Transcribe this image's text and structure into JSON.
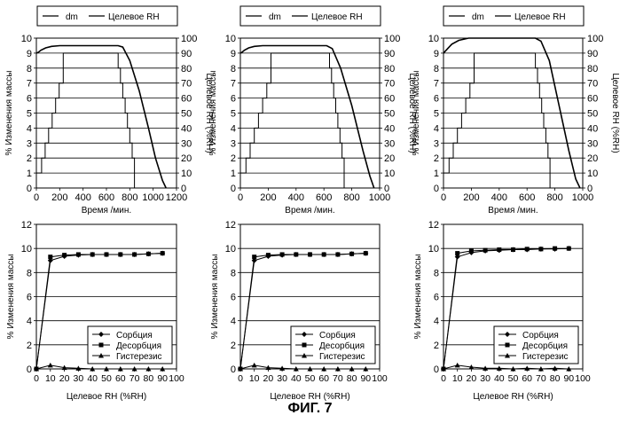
{
  "figure_caption": "ФИГ. 7",
  "chart_data": [
    {
      "type": "line",
      "panel": "top-left",
      "legend": [
        "dm",
        "Целевое RH"
      ],
      "legend_position": "top",
      "xlabel": "Время /мин.",
      "ylabel": "% Изменения массы",
      "y2label": "Целевое RH (%RH)",
      "xlim": [
        0,
        1200
      ],
      "xticks": [
        "0",
        "200",
        "400",
        "600",
        "800",
        "1000",
        "1200"
      ],
      "ylim": [
        0,
        10
      ],
      "yticks": [
        "0",
        "1",
        "2",
        "3",
        "4",
        "5",
        "6",
        "7",
        "8",
        "9",
        "10"
      ],
      "y2lim": [
        0,
        100
      ],
      "y2ticks": [
        "0",
        "10",
        "20",
        "30",
        "40",
        "50",
        "60",
        "70",
        "80",
        "90",
        "100"
      ],
      "grid": true,
      "series": [
        {
          "name": "dm",
          "axis": "left",
          "x": [
            0,
            15,
            40,
            80,
            130,
            200,
            300,
            500,
            700,
            740,
            800,
            880,
            960,
            1020,
            1080,
            1110
          ],
          "y": [
            9.0,
            9.05,
            9.2,
            9.35,
            9.45,
            9.5,
            9.5,
            9.5,
            9.5,
            9.4,
            8.5,
            6.5,
            4.0,
            2.0,
            0.5,
            0.0
          ]
        },
        {
          "name": "Целевое RH",
          "axis": "right",
          "x": [
            0,
            0,
            45,
            45,
            75,
            75,
            105,
            105,
            135,
            135,
            165,
            165,
            195,
            195,
            230,
            230,
            700,
            700,
            720,
            720,
            740,
            740,
            760,
            760,
            780,
            780,
            800,
            800,
            820,
            820,
            840,
            840,
            1110
          ],
          "y": [
            0,
            10,
            10,
            20,
            20,
            30,
            30,
            40,
            40,
            50,
            50,
            60,
            60,
            70,
            70,
            90,
            90,
            80,
            80,
            70,
            70,
            60,
            60,
            50,
            50,
            40,
            40,
            30,
            30,
            20,
            20,
            0,
            0
          ]
        }
      ]
    },
    {
      "type": "line",
      "panel": "top-middle",
      "legend": [
        "dm",
        "Целевое RH"
      ],
      "legend_position": "top",
      "xlabel": "Время /мин.",
      "ylabel": "% Изменения массы",
      "y2label": "Целевое RH (%RH)",
      "xlim": [
        0,
        1000
      ],
      "xticks": [
        "0",
        "200",
        "400",
        "600",
        "800",
        "1000"
      ],
      "ylim": [
        0,
        10
      ],
      "yticks": [
        "0",
        "1",
        "2",
        "3",
        "4",
        "5",
        "6",
        "7",
        "8",
        "9",
        "10"
      ],
      "y2lim": [
        0,
        100
      ],
      "y2ticks": [
        "0",
        "10",
        "20",
        "30",
        "40",
        "50",
        "60",
        "70",
        "80",
        "90",
        "100"
      ],
      "grid": true,
      "series": [
        {
          "name": "dm",
          "axis": "left",
          "x": [
            0,
            10,
            30,
            60,
            100,
            160,
            250,
            450,
            620,
            660,
            720,
            800,
            880,
            930,
            960
          ],
          "y": [
            9.0,
            9.05,
            9.2,
            9.35,
            9.45,
            9.5,
            9.5,
            9.5,
            9.5,
            9.3,
            8.0,
            5.5,
            2.5,
            0.8,
            0.0
          ]
        },
        {
          "name": "Целевое RH",
          "axis": "right",
          "x": [
            0,
            0,
            40,
            40,
            70,
            70,
            100,
            100,
            130,
            130,
            160,
            160,
            190,
            190,
            220,
            220,
            640,
            640,
            655,
            655,
            670,
            670,
            685,
            685,
            700,
            700,
            715,
            715,
            730,
            730,
            745,
            745,
            960
          ],
          "y": [
            0,
            10,
            10,
            20,
            20,
            30,
            30,
            40,
            40,
            50,
            50,
            60,
            60,
            70,
            70,
            90,
            90,
            80,
            80,
            70,
            70,
            60,
            60,
            50,
            50,
            40,
            40,
            30,
            30,
            20,
            20,
            0,
            0
          ]
        }
      ]
    },
    {
      "type": "line",
      "panel": "top-right",
      "legend": [
        "dm",
        "Целевое RH"
      ],
      "legend_position": "top",
      "xlabel": "Время /мин.",
      "ylabel": "% Изменения массы",
      "y2label": "Целевое RH (%RH)",
      "xlim": [
        0,
        1000
      ],
      "xticks": [
        "0",
        "200",
        "400",
        "600",
        "800",
        "1000"
      ],
      "ylim": [
        0,
        10
      ],
      "yticks": [
        "0",
        "1",
        "2",
        "3",
        "4",
        "5",
        "6",
        "7",
        "8",
        "9",
        "10"
      ],
      "y2lim": [
        0,
        100
      ],
      "y2ticks": [
        "0",
        "10",
        "20",
        "30",
        "40",
        "50",
        "60",
        "70",
        "80",
        "90",
        "100"
      ],
      "grid": true,
      "series": [
        {
          "name": "dm",
          "axis": "left",
          "x": [
            0,
            10,
            30,
            60,
            110,
            180,
            300,
            500,
            660,
            700,
            760,
            830,
            900,
            950,
            980
          ],
          "y": [
            9.0,
            9.1,
            9.3,
            9.6,
            9.85,
            10.0,
            10.0,
            10.0,
            10.0,
            9.8,
            8.5,
            5.5,
            2.5,
            0.6,
            0.0
          ]
        },
        {
          "name": "Целевое RH",
          "axis": "right",
          "x": [
            0,
            0,
            40,
            40,
            70,
            70,
            100,
            100,
            130,
            130,
            160,
            160,
            190,
            190,
            220,
            220,
            660,
            660,
            675,
            675,
            690,
            690,
            705,
            705,
            720,
            720,
            735,
            735,
            750,
            750,
            765,
            765,
            980
          ],
          "y": [
            0,
            10,
            10,
            20,
            20,
            30,
            30,
            40,
            40,
            50,
            50,
            60,
            60,
            70,
            70,
            90,
            90,
            80,
            80,
            70,
            70,
            60,
            60,
            50,
            50,
            40,
            40,
            30,
            30,
            20,
            20,
            0,
            0
          ]
        }
      ]
    },
    {
      "type": "line",
      "panel": "bottom-left",
      "legend": [
        "Сорбция",
        "Десорбция",
        "Гистерезис"
      ],
      "legend_position": "bottom-right",
      "xlabel": "Целевое RH (%RH)",
      "ylabel": "% Изменения массы",
      "xlim": [
        0,
        100
      ],
      "xticks": [
        "0",
        "10",
        "20",
        "30",
        "40",
        "50",
        "60",
        "70",
        "80",
        "90",
        "100"
      ],
      "ylim": [
        0,
        12
      ],
      "yticks": [
        "0",
        "2",
        "4",
        "6",
        "8",
        "10",
        "12"
      ],
      "grid": true,
      "series": [
        {
          "name": "Сорбция",
          "marker": "diamond",
          "x": [
            0,
            10,
            20,
            30,
            40,
            50,
            60,
            70,
            80,
            90
          ],
          "y": [
            0,
            9.0,
            9.35,
            9.45,
            9.5,
            9.5,
            9.5,
            9.5,
            9.55,
            9.6
          ]
        },
        {
          "name": "Десорбция",
          "marker": "square",
          "x": [
            0,
            10,
            20,
            30,
            40,
            50,
            60,
            70,
            80,
            90
          ],
          "y": [
            0,
            9.3,
            9.45,
            9.5,
            9.5,
            9.5,
            9.5,
            9.5,
            9.55,
            9.6
          ]
        },
        {
          "name": "Гистерезис",
          "marker": "triangle",
          "x": [
            0,
            10,
            20,
            30,
            40,
            50,
            60,
            70,
            80,
            90
          ],
          "y": [
            0,
            0.3,
            0.1,
            0.05,
            0.0,
            0.0,
            0.0,
            0.0,
            0.0,
            0.0
          ]
        }
      ]
    },
    {
      "type": "line",
      "panel": "bottom-middle",
      "legend": [
        "Сорбция",
        "Десорбция",
        "Гистерезис"
      ],
      "legend_position": "bottom-right",
      "xlabel": "Целевое RH (%RH)",
      "ylabel": "% Изменения массы",
      "xlim": [
        0,
        100
      ],
      "xticks": [
        "0",
        "10",
        "20",
        "30",
        "40",
        "50",
        "60",
        "70",
        "80",
        "90",
        "100"
      ],
      "ylim": [
        0,
        12
      ],
      "yticks": [
        "0",
        "2",
        "4",
        "6",
        "8",
        "10",
        "12"
      ],
      "grid": true,
      "series": [
        {
          "name": "Сорбция",
          "marker": "diamond",
          "x": [
            0,
            10,
            20,
            30,
            40,
            50,
            60,
            70,
            80,
            90
          ],
          "y": [
            0,
            9.0,
            9.35,
            9.45,
            9.5,
            9.5,
            9.5,
            9.5,
            9.55,
            9.6
          ]
        },
        {
          "name": "Десорбция",
          "marker": "square",
          "x": [
            0,
            10,
            20,
            30,
            40,
            50,
            60,
            70,
            80,
            90
          ],
          "y": [
            0,
            9.3,
            9.45,
            9.5,
            9.5,
            9.5,
            9.5,
            9.5,
            9.55,
            9.6
          ]
        },
        {
          "name": "Гистерезис",
          "marker": "triangle",
          "x": [
            0,
            10,
            20,
            30,
            40,
            50,
            60,
            70,
            80,
            90
          ],
          "y": [
            0,
            0.3,
            0.1,
            0.05,
            0.0,
            0.0,
            0.0,
            0.0,
            0.0,
            0.0
          ]
        }
      ]
    },
    {
      "type": "line",
      "panel": "bottom-right",
      "legend": [
        "Сорбция",
        "Десорбция",
        "Гистерезис"
      ],
      "legend_position": "bottom-right",
      "xlabel": "Целевое RH (%RH)",
      "ylabel": "% Изменения массы",
      "xlim": [
        0,
        100
      ],
      "xticks": [
        "0",
        "10",
        "20",
        "30",
        "40",
        "50",
        "60",
        "70",
        "80",
        "90",
        "100"
      ],
      "ylim": [
        0,
        12
      ],
      "yticks": [
        "0",
        "2",
        "4",
        "6",
        "8",
        "10",
        "12"
      ],
      "grid": true,
      "series": [
        {
          "name": "Сорбция",
          "marker": "diamond",
          "x": [
            0,
            10,
            20,
            30,
            40,
            50,
            60,
            70,
            80,
            90
          ],
          "y": [
            0,
            9.3,
            9.65,
            9.8,
            9.85,
            9.9,
            9.9,
            9.95,
            9.95,
            10.0
          ]
        },
        {
          "name": "Десорбция",
          "marker": "square",
          "x": [
            0,
            10,
            20,
            30,
            40,
            50,
            60,
            70,
            80,
            90
          ],
          "y": [
            0,
            9.6,
            9.8,
            9.85,
            9.9,
            9.9,
            9.95,
            9.95,
            10.0,
            10.0
          ]
        },
        {
          "name": "Гистерезис",
          "marker": "triangle",
          "x": [
            0,
            10,
            20,
            30,
            40,
            50,
            60,
            70,
            80,
            90
          ],
          "y": [
            0,
            0.3,
            0.15,
            0.05,
            0.05,
            0.0,
            0.05,
            0.0,
            0.05,
            0.0
          ]
        }
      ]
    }
  ]
}
